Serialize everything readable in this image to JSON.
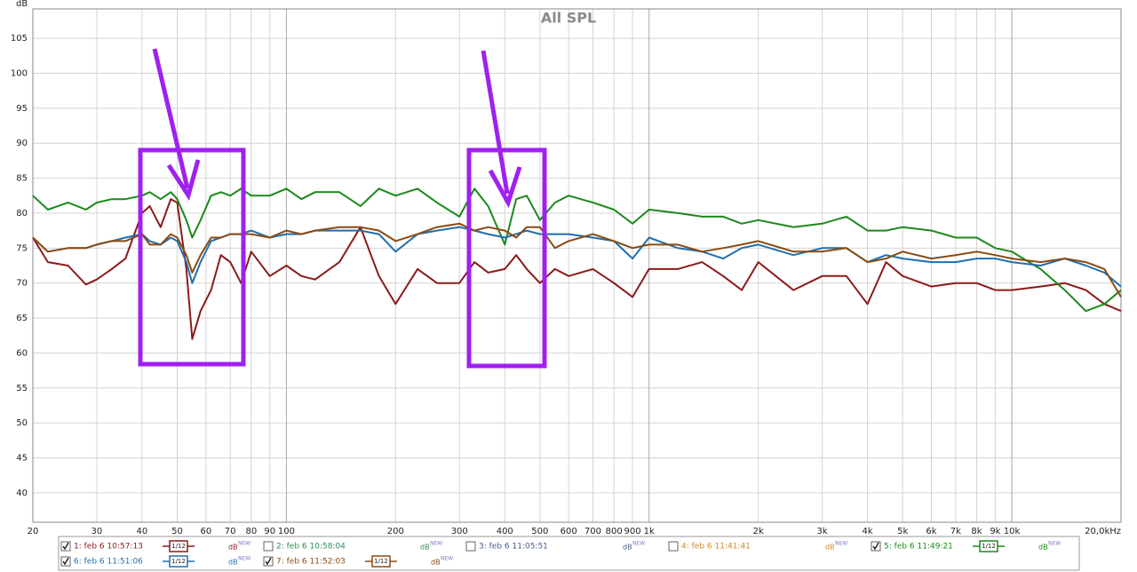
{
  "chart_data": {
    "type": "line",
    "title": "All SPL",
    "ylabel": "dB",
    "xscale": "log",
    "grid": true,
    "xlim": [
      20,
      20000
    ],
    "ylim": [
      35.8,
      109.2
    ],
    "yticks": [
      40,
      45,
      50,
      55,
      60,
      65,
      70,
      75,
      80,
      85,
      90,
      95,
      100,
      105
    ],
    "xticks": [
      20,
      30,
      40,
      50,
      60,
      70,
      80,
      90,
      100,
      200,
      300,
      400,
      500,
      600,
      700,
      800,
      900,
      {
        "value": 1000,
        "label": "1k"
      },
      {
        "value": 2000,
        "label": "2k"
      },
      {
        "value": 3000,
        "label": "3k"
      },
      {
        "value": 4000,
        "label": "4k"
      },
      {
        "value": 5000,
        "label": "5k"
      },
      {
        "value": 6000,
        "label": "6k"
      },
      {
        "value": 7000,
        "label": "7k"
      },
      {
        "value": 8000,
        "label": "8k"
      },
      {
        "value": 9000,
        "label": "9k"
      },
      {
        "value": 10000,
        "label": "10k"
      },
      {
        "value": 20000,
        "label": "20,0kHz"
      }
    ],
    "smoothing": "1/12",
    "legend_units": "dB",
    "legend_badge": "NEW",
    "x": [
      20,
      22,
      25,
      28,
      30,
      33,
      36,
      40,
      42,
      45,
      48,
      50,
      53,
      55,
      58,
      62,
      66,
      70,
      75,
      80,
      90,
      100,
      110,
      120,
      140,
      160,
      180,
      200,
      230,
      260,
      300,
      330,
      360,
      400,
      430,
      460,
      500,
      550,
      600,
      700,
      800,
      900,
      1000,
      1200,
      1400,
      1600,
      1800,
      2000,
      2500,
      3000,
      3500,
      4000,
      4500,
      5000,
      6000,
      7000,
      8000,
      9000,
      10000,
      12000,
      14000,
      16000,
      18000,
      20000
    ],
    "series": [
      {
        "name": "1: feb 6 10:57:13",
        "color": "#8b1a1a",
        "checked": true,
        "values": [
          76.5,
          73,
          72.5,
          69.8,
          70.5,
          72,
          73.5,
          80,
          81,
          78,
          82,
          81.5,
          72,
          62,
          66,
          69,
          74,
          73,
          70,
          74.5,
          71,
          72.5,
          71,
          70.5,
          73,
          78,
          71,
          67,
          72,
          70,
          70,
          73,
          71.5,
          72,
          74,
          72,
          70,
          72,
          71,
          72,
          70,
          68,
          72,
          72,
          73,
          71,
          69,
          73,
          69,
          71,
          71,
          67,
          73,
          71,
          69.5,
          70,
          70,
          69,
          69,
          69.5,
          70,
          69,
          67,
          66
        ]
      },
      {
        "name": "2: feb 6 10:58:04",
        "color": "#2e8b57",
        "checked": false
      },
      {
        "name": "3: feb 6 11:05:51",
        "color": "#4a5a8a",
        "checked": false
      },
      {
        "name": "4: feb 6 11:41:41",
        "color": "#d08a2a",
        "checked": false
      },
      {
        "name": "5: feb 6 11:49:21",
        "color": "#1a8a1a",
        "checked": true,
        "values": [
          82.5,
          80.5,
          81.5,
          80.5,
          81.5,
          82,
          82,
          82.5,
          83,
          82,
          83,
          82,
          79,
          76.5,
          79,
          82.5,
          83,
          82.5,
          83.5,
          82.5,
          82.5,
          83.5,
          82,
          83,
          83,
          81,
          83.5,
          82.5,
          83.5,
          81.5,
          79.5,
          83.5,
          81,
          75.5,
          82,
          82.5,
          79,
          81.5,
          82.5,
          81.5,
          80.5,
          78.5,
          80.5,
          80,
          79.5,
          79.5,
          78.5,
          79,
          78,
          78.5,
          79.5,
          77.5,
          77.5,
          78,
          77.5,
          76.5,
          76.5,
          75,
          74.5,
          72,
          69,
          66,
          67,
          69
        ]
      },
      {
        "name": "6: feb 6 11:51:06",
        "color": "#1f6fb0",
        "checked": true,
        "values": [
          76.5,
          74.5,
          75,
          75,
          75.5,
          76,
          76.5,
          77,
          76,
          75.5,
          76.5,
          76,
          73,
          70,
          73,
          76,
          76.5,
          77,
          77,
          77.5,
          76.5,
          77,
          77,
          77.5,
          77.5,
          77.5,
          77,
          74.5,
          77,
          77.5,
          78,
          77.5,
          77,
          76.5,
          77,
          77.5,
          77,
          77,
          77,
          76.5,
          76,
          73.5,
          76.5,
          75,
          74.5,
          73.5,
          75,
          75.5,
          74,
          75,
          75,
          73,
          74,
          73.5,
          73,
          73,
          73.5,
          73.5,
          73,
          72.5,
          73.5,
          72.5,
          71.5,
          69.5
        ]
      },
      {
        "name": "7: feb 6 11:52:03",
        "color": "#8b4a10",
        "checked": true,
        "values": [
          76.5,
          74.5,
          75,
          75,
          75.5,
          76,
          76,
          77,
          75.5,
          75.5,
          77,
          76.5,
          74,
          71.5,
          74,
          76.5,
          76.5,
          77,
          77,
          77,
          76.5,
          77.5,
          77,
          77.5,
          78,
          78,
          77.5,
          76,
          77,
          78,
          78.5,
          77.5,
          78,
          77.5,
          76.5,
          78,
          78,
          75,
          76,
          77,
          76,
          75,
          75.5,
          75.5,
          74.5,
          75,
          75.5,
          76,
          74.5,
          74.5,
          75,
          73,
          73.5,
          74.5,
          73.5,
          74,
          74.5,
          74,
          73.5,
          73,
          73.5,
          73,
          72,
          68
        ]
      }
    ]
  }
}
